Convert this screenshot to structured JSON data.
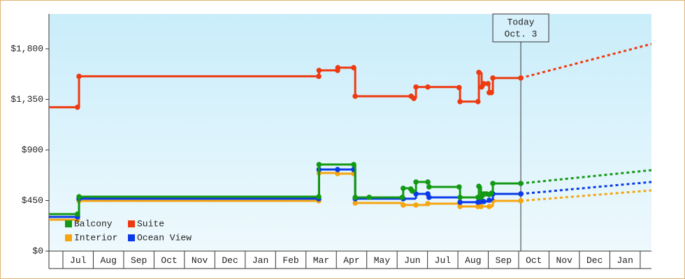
{
  "chart_data": {
    "type": "step-line",
    "xlim": [
      -0.46,
      19.37
    ],
    "xticks": [
      {
        "value": 0.5,
        "label": "Jul"
      },
      {
        "value": 1.5,
        "label": "Aug"
      },
      {
        "value": 2.5,
        "label": "Sep"
      },
      {
        "value": 3.5,
        "label": "Oct"
      },
      {
        "value": 4.5,
        "label": "Nov"
      },
      {
        "value": 5.5,
        "label": "Dec"
      },
      {
        "value": 6.5,
        "label": "Jan"
      },
      {
        "value": 7.5,
        "label": "Feb"
      },
      {
        "value": 8.5,
        "label": "Mar"
      },
      {
        "value": 9.5,
        "label": "Apr"
      },
      {
        "value": 10.5,
        "label": "May"
      },
      {
        "value": 11.5,
        "label": "Jun"
      },
      {
        "value": 12.5,
        "label": "Jul"
      },
      {
        "value": 13.5,
        "label": "Aug"
      },
      {
        "value": 14.5,
        "label": "Sep"
      },
      {
        "value": 15.5,
        "label": "Oct"
      },
      {
        "value": 16.5,
        "label": "Nov"
      },
      {
        "value": 17.5,
        "label": "Dec"
      },
      {
        "value": 18.5,
        "label": "Jan"
      }
    ],
    "ylim": [
      0,
      2110
    ],
    "yticks": [
      {
        "value": 0,
        "label": "$0"
      },
      {
        "value": 450,
        "label": "$450"
      },
      {
        "value": 900,
        "label": "$900"
      },
      {
        "value": 1350,
        "label": "$1,350"
      },
      {
        "value": 1800,
        "label": "$1,800"
      }
    ],
    "annotation": {
      "x": 15.07,
      "lines": [
        "Today",
        "Oct. 3"
      ]
    },
    "legend": "bottom-left",
    "series": [
      {
        "name": "Balcony",
        "color": "#139913",
        "x": [
          -0.46,
          0.48,
          0.53,
          8.42,
          8.43,
          9.57,
          9.62,
          10.08,
          11.17,
          11.2,
          11.45,
          11.5,
          11.62,
          12.01,
          12.05,
          13.04,
          13.07,
          13.66,
          13.69,
          13.76,
          13.85,
          13.94,
          14.03,
          14.1,
          14.15,
          15.07
        ],
        "values": [
          329,
          329,
          484,
          484,
          770,
          770,
          478,
          478,
          478,
          559,
          553,
          534,
          615,
          615,
          571,
          571,
          478,
          478,
          577,
          478,
          509,
          509,
          503,
          515,
          602,
          602
        ],
        "forecast_x": 19.37,
        "forecast_value": 720
      },
      {
        "name": "Suite",
        "color": "#ee3a10",
        "x": [
          -0.46,
          0.48,
          0.53,
          8.42,
          8.43,
          9.04,
          9.05,
          9.57,
          9.62,
          11.46,
          11.55,
          11.62,
          12.01,
          13.04,
          13.07,
          13.66,
          13.69,
          13.78,
          13.85,
          13.99,
          14.03,
          14.1,
          14.15,
          15.07
        ],
        "values": [
          1280,
          1280,
          1555,
          1555,
          1608,
          1608,
          1632,
          1632,
          1378,
          1378,
          1359,
          1460,
          1460,
          1455,
          1330,
          1330,
          1590,
          1460,
          1490,
          1490,
          1410,
          1410,
          1540,
          1540
        ],
        "forecast_x": 19.37,
        "forecast_value": 1843
      },
      {
        "name": "Interior",
        "color": "#f5a510",
        "x": [
          -0.46,
          0.48,
          0.53,
          8.42,
          8.43,
          9.04,
          9.57,
          9.62,
          11.2,
          11.62,
          12.01,
          13.07,
          13.66,
          13.76,
          14.03,
          14.15,
          15.07
        ],
        "values": [
          279,
          279,
          447,
          447,
          695,
          689,
          689,
          428,
          410,
          410,
          422,
          397,
          397,
          397,
          397,
          447,
          447
        ],
        "forecast_x": 19.37,
        "forecast_value": 540
      },
      {
        "name": "Ocean View",
        "color": "#0a3ae8",
        "x": [
          -0.46,
          0.48,
          0.53,
          8.42,
          8.43,
          9.04,
          9.57,
          9.62,
          11.2,
          11.62,
          12.01,
          12.05,
          13.07,
          13.66,
          13.76,
          13.85,
          14.03,
          14.15,
          15.07
        ],
        "values": [
          304,
          304,
          466,
          466,
          726,
          726,
          726,
          466,
          466,
          509,
          509,
          478,
          435,
          435,
          441,
          441,
          453,
          509,
          509
        ],
        "forecast_x": 19.37,
        "forecast_value": 615
      }
    ]
  }
}
